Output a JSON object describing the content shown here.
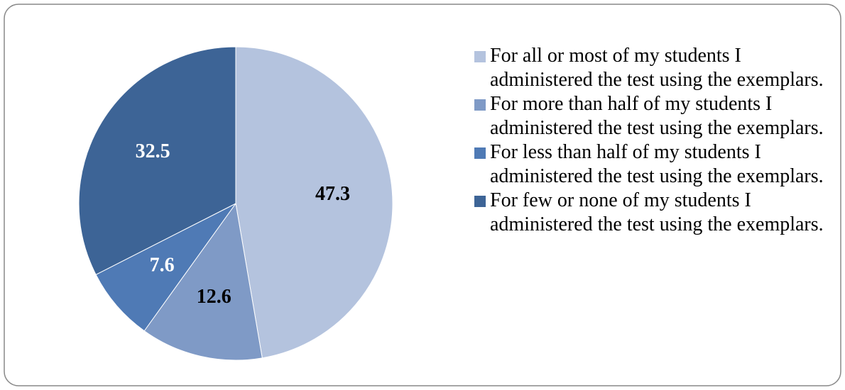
{
  "chart_data": {
    "type": "pie",
    "categories": [
      "For all or most of my students I administered the test using the exemplars.",
      "For more than half of my students I administered the test using the exemplars.",
      "For less than half of my students I administered the test using the exemplars.",
      "For few or none of my students I administered the test using the exemplars."
    ],
    "values": [
      47.3,
      12.6,
      7.6,
      32.5
    ],
    "colors": [
      "#b4c3de",
      "#7f9ac6",
      "#4f7ab5",
      "#3d6496"
    ],
    "label_colors": [
      "#000000",
      "#000000",
      "#ffffff",
      "#ffffff"
    ],
    "legend": "right"
  }
}
